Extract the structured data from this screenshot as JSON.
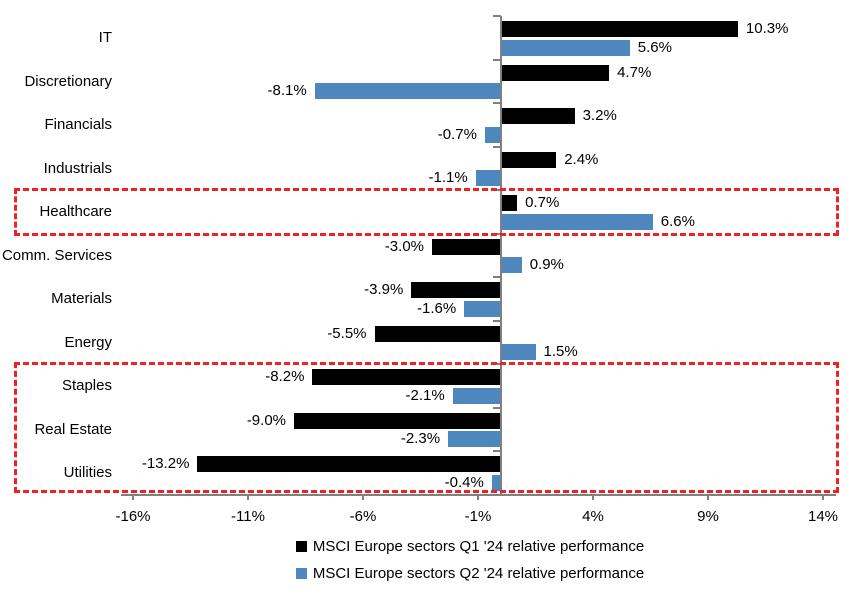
{
  "chart_data": {
    "type": "bar",
    "orientation": "horizontal",
    "title": "",
    "xlabel": "",
    "ylabel": "",
    "xlim": [
      -16.5,
      14.5
    ],
    "grid": false,
    "legend_position": "bottom-center",
    "categories": [
      "IT",
      "Discretionary",
      "Financials",
      "Industrials",
      "Healthcare",
      "Comm. Services",
      "Materials",
      "Energy",
      "Staples",
      "Real Estate",
      "Utilities"
    ],
    "series": [
      {
        "name": "MSCI Europe sectors Q1 '24 relative performance",
        "color": "#000000",
        "values": [
          10.3,
          4.7,
          3.2,
          2.4,
          0.7,
          -3.0,
          -3.9,
          -5.5,
          -8.2,
          -9.0,
          -13.2
        ],
        "labels": [
          "10.3%",
          "4.7%",
          "3.2%",
          "2.4%",
          "0.7%",
          "-3.0%",
          "-3.9%",
          "-5.5%",
          "-8.2%",
          "-9.0%",
          "-13.2%"
        ]
      },
      {
        "name": "MSCI Europe sectors Q2 '24 relative performance",
        "color": "#4E86BE",
        "values": [
          5.6,
          -8.1,
          -0.7,
          -1.1,
          6.6,
          0.9,
          -1.6,
          1.5,
          -2.1,
          -2.3,
          -0.4
        ],
        "labels": [
          "5.6%",
          "-8.1%",
          "-0.7%",
          "-1.1%",
          "6.6%",
          "0.9%",
          "-1.6%",
          "1.5%",
          "-2.1%",
          "-2.3%",
          "-0.4%"
        ]
      }
    ],
    "x_ticks": [
      {
        "label": "-16%",
        "value": -16
      },
      {
        "label": "-11%",
        "value": -11
      },
      {
        "label": "-6%",
        "value": -6
      },
      {
        "label": "-1%",
        "value": -1
      },
      {
        "label": "4%",
        "value": 4
      },
      {
        "label": "9%",
        "value": 9
      },
      {
        "label": "14%",
        "value": 14
      }
    ],
    "highlights": [
      {
        "categories": [
          "Healthcare"
        ],
        "color": "#EE2222",
        "style": "dashed"
      },
      {
        "categories": [
          "Staples",
          "Real Estate",
          "Utilities"
        ],
        "color": "#EE2222",
        "style": "dashed"
      }
    ]
  },
  "colors": {
    "q1_bar": "#000000",
    "q2_bar": "#4E86BE",
    "axis": "#808080",
    "highlight": "#EE2222",
    "background": "#FFFFFF"
  }
}
